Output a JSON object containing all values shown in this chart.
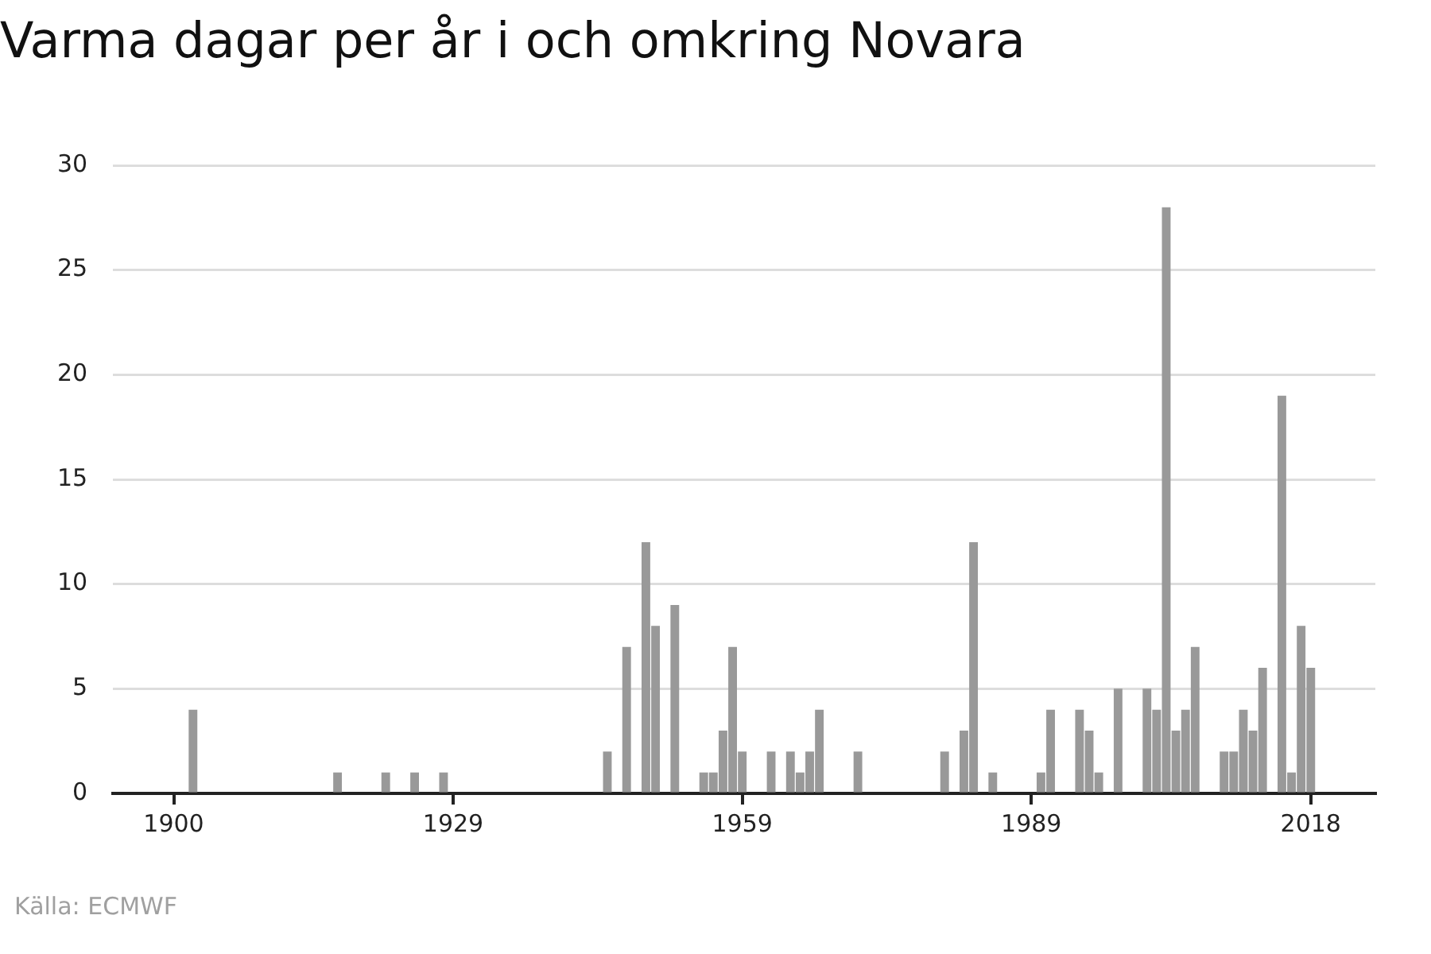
{
  "chart_data": {
    "type": "bar",
    "title": "Varma dagar per år i och omkring Novara",
    "x": [
      1902,
      1917,
      1922,
      1925,
      1928,
      1945,
      1947,
      1949,
      1950,
      1952,
      1955,
      1956,
      1957,
      1958,
      1959,
      1962,
      1964,
      1965,
      1966,
      1967,
      1971,
      1980,
      1982,
      1983,
      1985,
      1990,
      1991,
      1994,
      1995,
      1996,
      1998,
      2001,
      2002,
      2003,
      2004,
      2005,
      2006,
      2009,
      2010,
      2011,
      2012,
      2013,
      2015,
      2016,
      2017,
      2018
    ],
    "values": [
      4,
      1,
      1,
      1,
      1,
      2,
      7,
      12,
      8,
      9,
      1,
      1,
      3,
      7,
      2,
      2,
      2,
      1,
      2,
      4,
      2,
      2,
      3,
      12,
      1,
      1,
      4,
      4,
      3,
      1,
      5,
      5,
      4,
      28,
      3,
      4,
      7,
      2,
      2,
      4,
      3,
      6,
      19,
      1,
      8,
      6
    ],
    "color": "#999999",
    "xlim": [
      1893.7,
      2024.7
    ],
    "xticks": [
      1900,
      1929,
      1959,
      1989,
      2018
    ],
    "ylim": [
      0,
      30
    ],
    "yticks": [
      0,
      5,
      10,
      15,
      20,
      25,
      30
    ],
    "grid": "y",
    "legend": false,
    "annotations": [
      "Källa: ECMWF"
    ]
  }
}
